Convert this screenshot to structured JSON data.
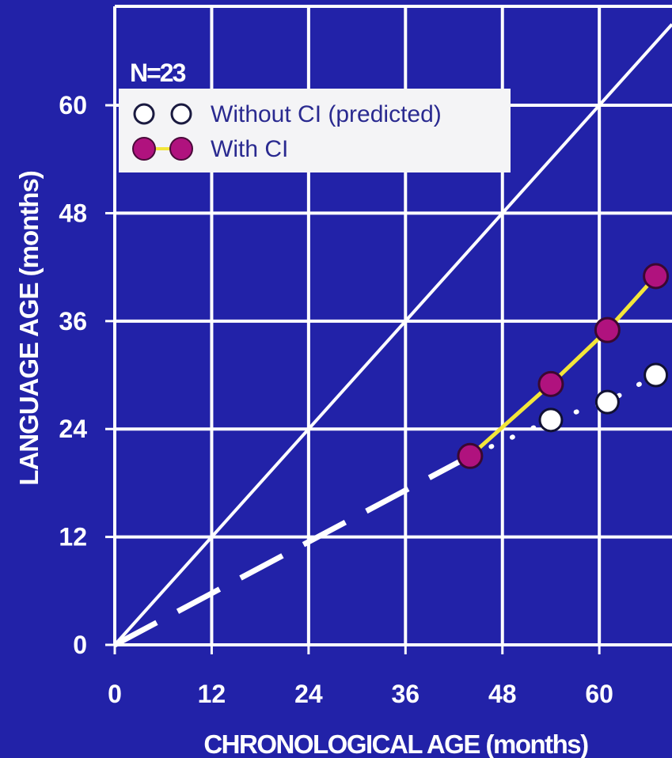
{
  "colors": {
    "background": "#2222a8",
    "grid": "#ffffff",
    "with_ci_fill": "#b0127e",
    "with_ci_line": "#f3e63a",
    "without_ci_fill": "#ffffff",
    "legend_bg": "#f4f4f6"
  },
  "chart_data": {
    "type": "line",
    "title": "",
    "xlabel": "CHRONOLOGICAL AGE (months)",
    "ylabel": "LANGUAGE AGE (months)",
    "xlim": [
      0,
      69
    ],
    "ylim": [
      0,
      71
    ],
    "xticks": [
      "0",
      "12",
      "24",
      "36",
      "48",
      "60"
    ],
    "yticks": [
      "0",
      "12",
      "24",
      "36",
      "48",
      "60"
    ],
    "grid": true,
    "legend_title": "N=23",
    "legend_position": "top-left",
    "reference_line": {
      "x": [
        0,
        69
      ],
      "y": [
        0,
        69
      ]
    },
    "pre_implant_trend": {
      "x": [
        0,
        44
      ],
      "y": [
        0,
        21
      ]
    },
    "series": [
      {
        "name": "Without CI (predicted)",
        "marker": "open-circle",
        "line": "dotted",
        "x": [
          44,
          54,
          61,
          67
        ],
        "y": [
          21,
          25,
          27,
          30
        ]
      },
      {
        "name": "With CI",
        "marker": "filled-circle",
        "line": "solid",
        "x": [
          44,
          54,
          61,
          67
        ],
        "y": [
          21,
          29,
          35,
          41
        ]
      }
    ]
  }
}
